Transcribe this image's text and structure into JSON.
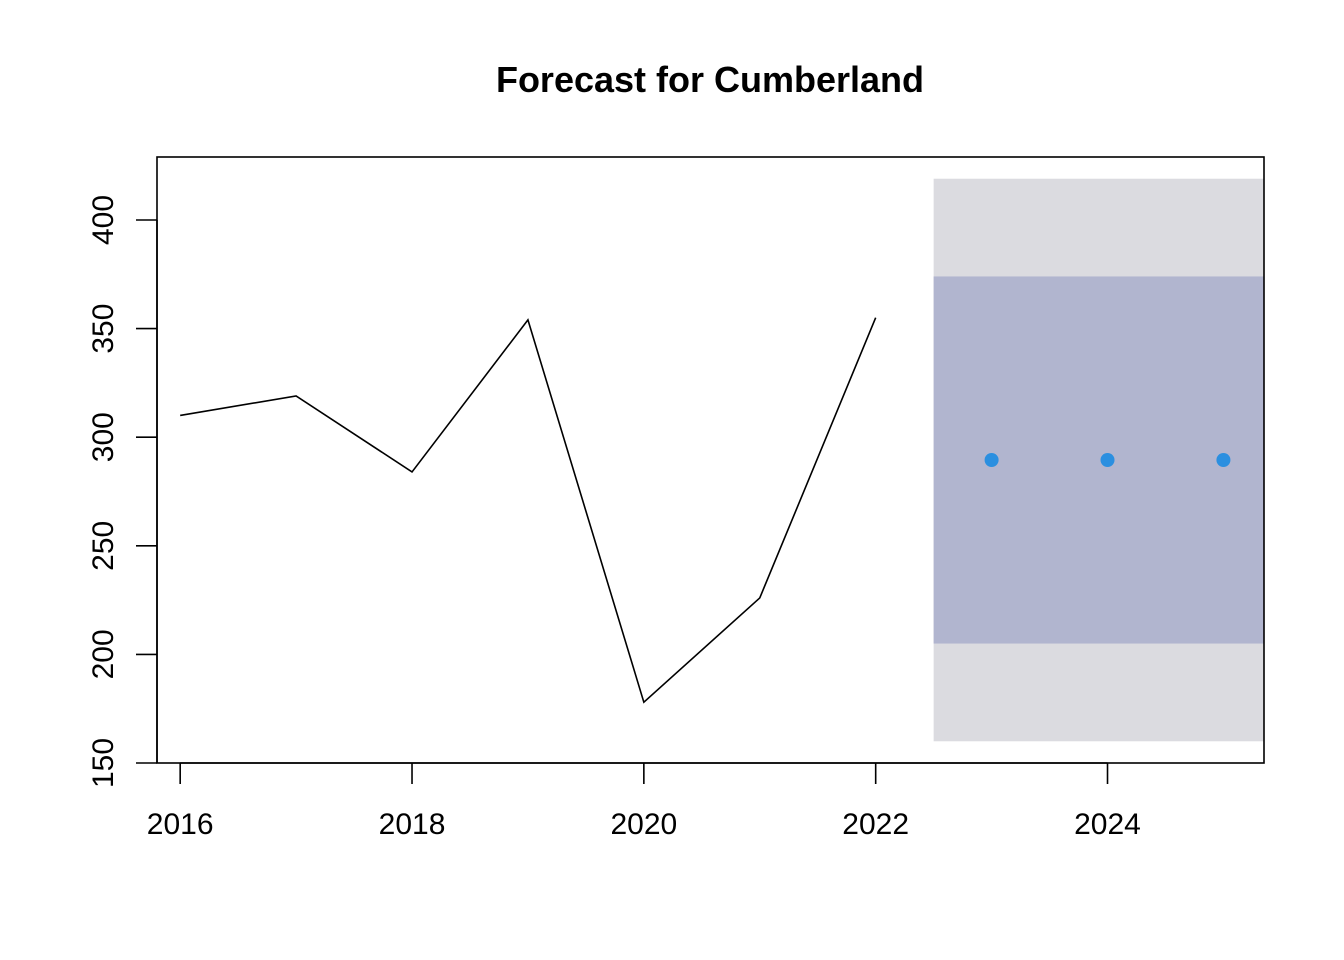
{
  "chart_data": {
    "type": "line",
    "title": "Forecast for Cumberland",
    "xlabel": "",
    "ylabel": "",
    "xlim": [
      2015.8,
      2025.35
    ],
    "ylim": [
      150,
      429
    ],
    "x_ticks": [
      2016,
      2018,
      2020,
      2022,
      2024
    ],
    "x_tick_labels": [
      "2016",
      "2018",
      "2020",
      "2022",
      "2024"
    ],
    "y_ticks": [
      150,
      200,
      250,
      300,
      350,
      400
    ],
    "y_tick_labels": [
      "150",
      "200",
      "250",
      "300",
      "350",
      "400"
    ],
    "grid": false,
    "legend": "none",
    "series": [
      {
        "role": "observed",
        "color": "#000000",
        "x": [
          2016,
          2017,
          2018,
          2019,
          2020,
          2021,
          2022
        ],
        "y": [
          310,
          319,
          284,
          354,
          178,
          226,
          355
        ]
      }
    ],
    "forecast": {
      "color": "#2b8fe0",
      "x": [
        2023,
        2024,
        2025
      ],
      "y": [
        289.5,
        289.5,
        289.5
      ],
      "band_start": 2022.5,
      "interval_80": {
        "lower": 205,
        "upper": 374,
        "color": "#b1b5cf"
      },
      "interval_95": {
        "lower": 160,
        "upper": 419,
        "color": "#dbdbe0"
      }
    }
  }
}
